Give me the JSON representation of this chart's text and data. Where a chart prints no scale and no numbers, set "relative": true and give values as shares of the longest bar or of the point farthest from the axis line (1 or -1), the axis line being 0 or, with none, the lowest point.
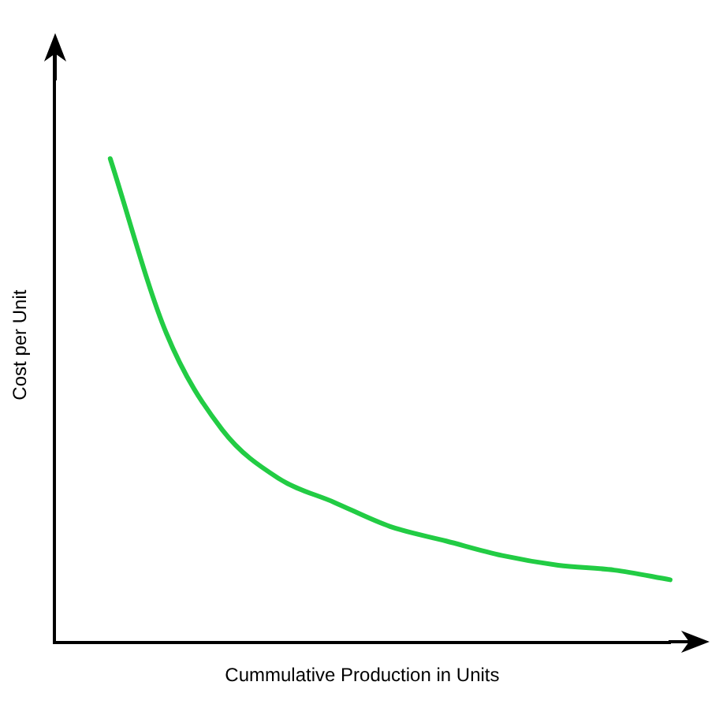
{
  "chart_data": {
    "type": "line",
    "relative": true,
    "xlabel": "Cummulative Production in Units",
    "ylabel": "Cost per Unit",
    "categories": [
      null,
      null,
      null,
      null,
      null,
      null,
      null,
      null,
      null,
      null,
      null,
      null
    ],
    "series": [
      {
        "color": "#22cc44",
        "values": [
          null,
          1.0,
          0.64,
          0.44,
          0.34,
          0.29,
          0.24,
          0.21,
          0.18,
          0.16,
          0.15,
          0.13
        ]
      }
    ],
    "marker": "none",
    "line_style": "solid",
    "grid": false,
    "legend": false
  }
}
